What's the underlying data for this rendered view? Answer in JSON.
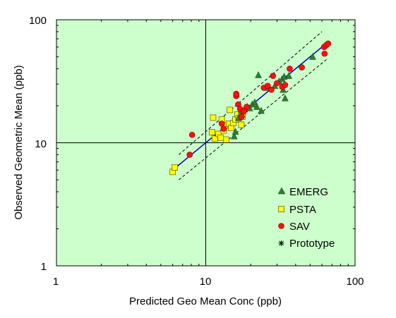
{
  "colors": {
    "plot_background": "#ccffcc",
    "emerg": "#2e7d32",
    "psta": "#ffff00",
    "psta_edge": "#7a6a00",
    "sav": "#ff1010",
    "sav_edge": "#800000",
    "fit_line": "#0000a0",
    "band_line": "#000000"
  },
  "chart_data": {
    "type": "scatter",
    "xlabel": "Predicted Geo Mean Conc (ppb)",
    "ylabel": "Observed Geometric Mean (ppb)",
    "xscale": "log",
    "yscale": "log",
    "xlim": [
      1,
      100
    ],
    "ylim": [
      1,
      100
    ],
    "x_tick_labels": [
      "1",
      "10",
      "100"
    ],
    "y_tick_labels": [
      "1",
      "10",
      "100"
    ],
    "x_ticks": [
      1,
      10,
      100
    ],
    "y_ticks": [
      1,
      10,
      100
    ],
    "reference_lines": {
      "x": 10,
      "y": 10
    },
    "legend_position": "bottom-right",
    "fit_line": {
      "x": [
        6.3,
        65
      ],
      "y": [
        6.3,
        65
      ]
    },
    "band_upper": {
      "x": [
        6.6,
        60
      ],
      "y": [
        8.0,
        80
      ]
    },
    "band_lower": {
      "x": [
        6.6,
        65
      ],
      "y": [
        5.0,
        48
      ]
    },
    "series": [
      {
        "name": "EMERG",
        "marker": "triangle",
        "points": [
          [
            15.5,
            11.3
          ],
          [
            15.8,
            12.3
          ],
          [
            16.6,
            16.0
          ],
          [
            17.3,
            18.2
          ],
          [
            18.2,
            18.8
          ],
          [
            19.0,
            19.6
          ],
          [
            19.7,
            19.1
          ],
          [
            20.5,
            20.5
          ],
          [
            21.3,
            21.3
          ],
          [
            22.0,
            19.6
          ],
          [
            22.5,
            35.5
          ],
          [
            23.5,
            18.2
          ],
          [
            26.0,
            28.0
          ],
          [
            29.0,
            29.0
          ],
          [
            31.0,
            31.5
          ],
          [
            32.5,
            33.0
          ],
          [
            33.0,
            27.0
          ],
          [
            33.5,
            34.5
          ],
          [
            34.0,
            23.0
          ],
          [
            36.0,
            35.0
          ],
          [
            52.0,
            50.0
          ]
        ]
      },
      {
        "name": "PSTA",
        "marker": "square",
        "points": [
          [
            6.0,
            5.8
          ],
          [
            6.2,
            6.3
          ],
          [
            11.0,
            12.2
          ],
          [
            11.2,
            16.0
          ],
          [
            11.5,
            10.8
          ],
          [
            12.2,
            11.8
          ],
          [
            12.6,
            11.0
          ],
          [
            12.8,
            15.5
          ],
          [
            13.2,
            12.6
          ],
          [
            13.4,
            13.8
          ],
          [
            13.7,
            10.6
          ],
          [
            14.3,
            14.3
          ],
          [
            14.5,
            18.5
          ],
          [
            14.8,
            13.2
          ],
          [
            15.3,
            14.5
          ],
          [
            15.8,
            15.5
          ],
          [
            16.3,
            17.0
          ],
          [
            16.6,
            15.8
          ],
          [
            17.3,
            14.0
          ],
          [
            17.6,
            16.3
          ]
        ]
      },
      {
        "name": "SAV",
        "marker": "circle",
        "points": [
          [
            7.8,
            8.0
          ],
          [
            8.1,
            11.6
          ],
          [
            12.8,
            14.3
          ],
          [
            13.2,
            13.0
          ],
          [
            16.0,
            24.0
          ],
          [
            16.0,
            25.0
          ],
          [
            16.5,
            20.5
          ],
          [
            17.0,
            18.8
          ],
          [
            17.4,
            16.3
          ],
          [
            18.0,
            18.0
          ],
          [
            18.8,
            19.6
          ],
          [
            24.5,
            28.0
          ],
          [
            26.0,
            29.0
          ],
          [
            27.5,
            27.0
          ],
          [
            28.2,
            35.0
          ],
          [
            30.0,
            30.5
          ],
          [
            32.5,
            28.5
          ],
          [
            34.0,
            29.5
          ],
          [
            36.5,
            40.0
          ],
          [
            44.0,
            41.0
          ],
          [
            62.0,
            60.0
          ],
          [
            62.5,
            53.0
          ],
          [
            64.0,
            62.0
          ],
          [
            66.0,
            64.0
          ]
        ]
      },
      {
        "name": "Prototype",
        "marker": "asterisk",
        "points": []
      }
    ]
  }
}
